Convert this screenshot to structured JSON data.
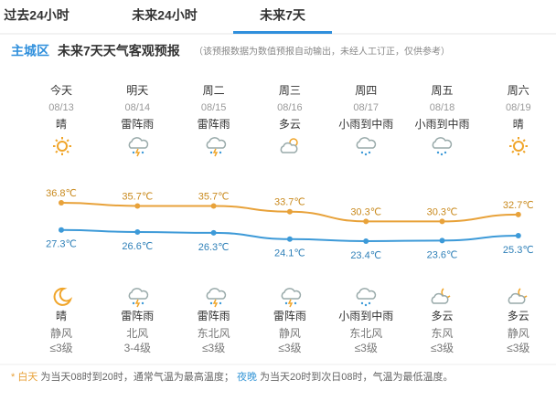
{
  "tabs": [
    "过去24小时",
    "未来24小时",
    "未来7天"
  ],
  "header": {
    "region": "主城区",
    "title": "未来7天天气客观预报",
    "note": "（该预报数据为数值预报自动输出，未经人工订正，仅供参考）"
  },
  "days": [
    {
      "name": "今天",
      "date": "08/13",
      "day_weather": "晴",
      "night_weather": "晴",
      "wind_dir": "静风",
      "wind_level": "≤3级"
    },
    {
      "name": "明天",
      "date": "08/14",
      "day_weather": "雷阵雨",
      "night_weather": "雷阵雨",
      "wind_dir": "北风",
      "wind_level": "3-4级"
    },
    {
      "name": "周二",
      "date": "08/15",
      "day_weather": "雷阵雨",
      "night_weather": "雷阵雨",
      "wind_dir": "东北风",
      "wind_level": "≤3级"
    },
    {
      "name": "周三",
      "date": "08/16",
      "day_weather": "多云",
      "night_weather": "雷阵雨",
      "wind_dir": "静风",
      "wind_level": "≤3级"
    },
    {
      "name": "周四",
      "date": "08/17",
      "day_weather": "小雨到中雨",
      "night_weather": "小雨到中雨",
      "wind_dir": "东北风",
      "wind_level": "≤3级"
    },
    {
      "name": "周五",
      "date": "08/18",
      "day_weather": "小雨到中雨",
      "night_weather": "多云",
      "wind_dir": "东风",
      "wind_level": "≤3级"
    },
    {
      "name": "周六",
      "date": "08/19",
      "day_weather": "晴",
      "night_weather": "多云",
      "wind_dir": "静风",
      "wind_level": "≤3级"
    }
  ],
  "chart_data": {
    "type": "line",
    "series": [
      {
        "name": "白天",
        "color": "#e8a23a",
        "values": [
          36.8,
          35.7,
          35.7,
          33.7,
          30.3,
          30.3,
          32.7
        ],
        "value_labels": [
          "36.8℃",
          "35.7℃",
          "35.7℃",
          "33.7℃",
          "30.3℃",
          "30.3℃",
          "32.7℃"
        ]
      },
      {
        "name": "夜晚",
        "color": "#3d9ad8",
        "values": [
          27.3,
          26.6,
          26.3,
          24.1,
          23.4,
          23.6,
          25.3
        ],
        "value_labels": [
          "27.3℃",
          "26.6℃",
          "26.3℃",
          "24.1℃",
          "23.4℃",
          "23.6℃",
          "25.3℃"
        ]
      }
    ]
  },
  "footer": {
    "star": "*",
    "day_term": "白天",
    "day_text": "为当天08时到20时，通常气温为最高温度；",
    "night_term": "夜晚",
    "night_text": "为当天20时到次日08时，气温为最低温度。"
  }
}
